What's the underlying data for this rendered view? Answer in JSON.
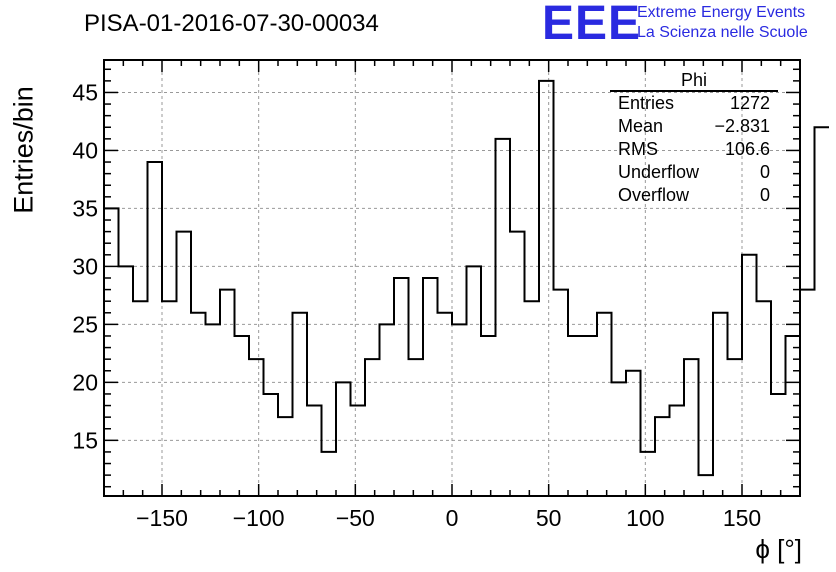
{
  "header": {
    "run_title": "PISA-01-2016-07-30-00034",
    "logo_text": "EEE",
    "experiment_line1": "Extreme Energy Events",
    "experiment_line2": "La Scienza nelle Scuole",
    "logo_color": "#2a2ae0"
  },
  "stats_box": {
    "name": "Phi",
    "rows": [
      {
        "label": "Entries",
        "value": "1272"
      },
      {
        "label": "Mean",
        "value": "−2.831"
      },
      {
        "label": "RMS",
        "value": "106.6"
      },
      {
        "label": "Underflow",
        "value": "0"
      },
      {
        "label": "Overflow",
        "value": "0"
      }
    ]
  },
  "chart_data": {
    "type": "bar",
    "histogram_style": "step",
    "title": "PISA-01-2016-07-30-00034",
    "xlabel": "ϕ [°]",
    "ylabel": "Entries/bin",
    "xlim": [
      -180,
      180
    ],
    "ylim": [
      10.2,
      47.8
    ],
    "bin_width": 7.5,
    "bin_edges_start": -180,
    "values": [
      35,
      30,
      27,
      39,
      27,
      33,
      26,
      25,
      28,
      24,
      22,
      19,
      17,
      26,
      18,
      14,
      20,
      18,
      22,
      25,
      29,
      22,
      29,
      26,
      25,
      30,
      24,
      41,
      33,
      27,
      46,
      28,
      24,
      24,
      26,
      20,
      21,
      14,
      17,
      18,
      22,
      12,
      26,
      22,
      31,
      27,
      19,
      24,
      28,
      42
    ],
    "xticks": [
      -150,
      -100,
      -50,
      0,
      50,
      100,
      150
    ],
    "xtick_labels": [
      "−150",
      "−100",
      "−50",
      "0",
      "50",
      "100",
      "150"
    ],
    "yticks": [
      15,
      20,
      25,
      30,
      35,
      40,
      45
    ],
    "ytick_labels": [
      "15",
      "20",
      "25",
      "30",
      "35",
      "40",
      "45"
    ],
    "grid": true,
    "line_color": "#000000"
  }
}
